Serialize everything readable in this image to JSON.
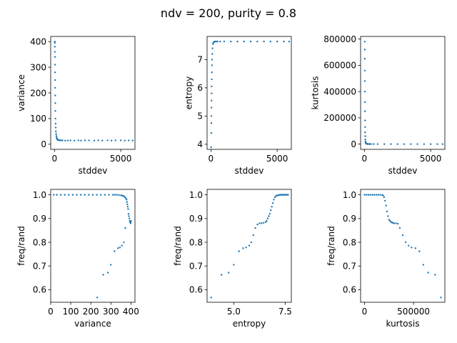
{
  "figure": {
    "title": "ndv = 200, purity = 0.8",
    "marker_color": "#1f77b4"
  },
  "chart_data": [
    {
      "type": "scatter",
      "xlabel": "stddev",
      "ylabel": "variance",
      "xlim": [
        -290,
        6070
      ],
      "ylim": [
        -20,
        420
      ],
      "xticks": [
        0,
        5000
      ],
      "yticks": [
        0,
        100,
        200,
        300,
        400
      ],
      "series": [
        {
          "x": [
            20,
            22,
            25,
            28,
            30,
            33,
            36,
            40,
            45,
            50,
            55,
            60,
            70,
            80,
            90,
            100,
            120,
            140,
            160,
            180,
            200,
            230,
            260,
            300,
            350,
            400,
            500,
            600,
            800,
            1000,
            1200,
            1500,
            1800,
            2000,
            2300,
            2600,
            3000,
            3300,
            3600,
            4000,
            4300,
            4600,
            5000,
            5300,
            5600,
            5900
          ],
          "y": [
            400,
            395,
            380,
            360,
            340,
            310,
            280,
            250,
            220,
            190,
            160,
            130,
            100,
            80,
            65,
            50,
            40,
            32,
            26,
            22,
            19,
            18,
            17,
            16,
            16,
            15,
            15,
            15,
            14,
            14,
            15,
            14,
            15,
            14,
            15,
            15,
            14,
            15,
            14,
            15,
            14,
            15,
            15,
            14,
            15,
            14
          ]
        }
      ]
    },
    {
      "type": "scatter",
      "xlabel": "stddev",
      "ylabel": "entropy",
      "xlim": [
        -290,
        6070
      ],
      "ylim": [
        3.82,
        7.82
      ],
      "xticks": [
        0,
        5000
      ],
      "yticks": [
        4,
        5,
        6,
        7
      ],
      "series": [
        {
          "x": [
            20,
            25,
            30,
            35,
            40,
            45,
            50,
            55,
            60,
            70,
            80,
            90,
            100,
            120,
            150,
            180,
            220,
            260,
            300,
            400,
            500,
            700,
            1000,
            1500,
            2000,
            2500,
            3000,
            3500,
            4000,
            4500,
            5000,
            5500,
            5900
          ],
          "y": [
            3.9,
            4.4,
            4.75,
            5.0,
            5.3,
            5.55,
            5.8,
            6.05,
            6.3,
            6.55,
            6.8,
            7.0,
            7.2,
            7.4,
            7.55,
            7.6,
            7.62,
            7.63,
            7.64,
            7.64,
            7.64,
            7.64,
            7.64,
            7.64,
            7.64,
            7.64,
            7.64,
            7.64,
            7.64,
            7.64,
            7.64,
            7.64,
            7.64
          ]
        }
      ]
    },
    {
      "type": "scatter",
      "xlabel": "stddev",
      "ylabel": "kurtosis",
      "xlim": [
        -290,
        6070
      ],
      "ylim": [
        -40000,
        820000
      ],
      "xticks": [
        0,
        5000
      ],
      "yticks": [
        0,
        200000,
        400000,
        600000,
        800000
      ],
      "series": [
        {
          "x": [
            20,
            22,
            25,
            28,
            30,
            33,
            36,
            40,
            45,
            50,
            55,
            60,
            70,
            80,
            90,
            100,
            120,
            140,
            170,
            200,
            250,
            300,
            400,
            500,
            700,
            1000,
            1500,
            2000,
            2500,
            3000,
            3500,
            4000,
            4500,
            5000,
            5500,
            5900
          ],
          "y": [
            780000,
            720000,
            650000,
            560000,
            480000,
            400000,
            320000,
            250000,
            180000,
            130000,
            90000,
            60000,
            35000,
            20000,
            12000,
            8000,
            5000,
            3000,
            2000,
            1000,
            800,
            500,
            300,
            200,
            100,
            50,
            20,
            10,
            0,
            0,
            0,
            0,
            0,
            0,
            0,
            0
          ]
        }
      ]
    },
    {
      "type": "scatter",
      "xlabel": "variance",
      "ylabel": "freq/rand",
      "xlim": [
        0,
        420
      ],
      "ylim": [
        0.547,
        1.023
      ],
      "xticks": [
        0,
        100,
        200,
        300,
        400
      ],
      "yticks": [
        0.6,
        0.7,
        0.8,
        0.9,
        1.0
      ],
      "series": [
        {
          "x": [
            15,
            30,
            50,
            70,
            90,
            110,
            130,
            150,
            170,
            190,
            210,
            230,
            250,
            270,
            290,
            310,
            320,
            330,
            340,
            350,
            355,
            360,
            365,
            370,
            375,
            378,
            380,
            382,
            384,
            386,
            388,
            390,
            392,
            394,
            396,
            398,
            399,
            400,
            232,
            262,
            285,
            300,
            318,
            335,
            345,
            355,
            365,
            372
          ],
          "y": [
            1.0,
            1.0,
            1.0,
            1.0,
            1.0,
            1.0,
            1.0,
            1.0,
            1.0,
            1.0,
            1.0,
            1.0,
            1.0,
            1.0,
            1.0,
            1.0,
            1.0,
            1.0,
            0.999,
            0.998,
            0.997,
            0.996,
            0.994,
            0.99,
            0.985,
            0.98,
            0.97,
            0.96,
            0.95,
            0.94,
            0.92,
            0.91,
            0.9,
            0.89,
            0.885,
            0.88,
            0.885,
            0.89,
            0.567,
            0.663,
            0.672,
            0.705,
            0.762,
            0.775,
            0.778,
            0.786,
            0.8,
            0.86
          ]
        }
      ]
    },
    {
      "type": "scatter",
      "xlabel": "entropy",
      "ylabel": "freq/rand",
      "xlim": [
        3.7,
        7.8
      ],
      "ylim": [
        0.547,
        1.023
      ],
      "xticks": [
        5.0,
        7.5
      ],
      "yticks": [
        0.6,
        0.7,
        0.8,
        0.9,
        1.0
      ],
      "series": [
        {
          "x": [
            3.9,
            4.4,
            4.75,
            5.0,
            5.25,
            5.45,
            5.6,
            5.75,
            5.85,
            5.95,
            6.05,
            6.15,
            6.25,
            6.35,
            6.45,
            6.55,
            6.6,
            6.65,
            6.7,
            6.75,
            6.8,
            6.85,
            6.9,
            6.95,
            7.0,
            7.05,
            7.1,
            7.15,
            7.2,
            7.25,
            7.3,
            7.35,
            7.4,
            7.45,
            7.5,
            7.55,
            7.6,
            7.64
          ],
          "y": [
            0.567,
            0.663,
            0.672,
            0.705,
            0.762,
            0.775,
            0.778,
            0.786,
            0.8,
            0.83,
            0.86,
            0.875,
            0.88,
            0.88,
            0.882,
            0.885,
            0.89,
            0.9,
            0.91,
            0.92,
            0.935,
            0.95,
            0.965,
            0.98,
            0.99,
            0.995,
            0.997,
            0.998,
            0.999,
            1.0,
            1.0,
            1.0,
            1.0,
            1.0,
            1.0,
            1.0,
            1.0,
            1.0
          ]
        }
      ]
    },
    {
      "type": "scatter",
      "xlabel": "kurtosis",
      "ylabel": "freq/rand",
      "xlim": [
        -40000,
        820000
      ],
      "ylim": [
        0.547,
        1.023
      ],
      "xticks": [
        0,
        500000
      ],
      "yticks": [
        0.6,
        0.7,
        0.8,
        0.9,
        1.0
      ],
      "series": [
        {
          "x": [
            0,
            20000,
            40000,
            60000,
            80000,
            100000,
            120000,
            140000,
            160000,
            180000,
            190000,
            200000,
            210000,
            220000,
            230000,
            240000,
            250000,
            260000,
            270000,
            280000,
            290000,
            300000,
            320000,
            340000,
            360000,
            390000,
            420000,
            450000,
            480000,
            520000,
            560000,
            600000,
            650000,
            720000,
            780000
          ],
          "y": [
            1.0,
            1.0,
            1.0,
            1.0,
            1.0,
            1.0,
            1.0,
            1.0,
            1.0,
            0.999,
            0.997,
            0.99,
            0.975,
            0.955,
            0.93,
            0.91,
            0.895,
            0.89,
            0.886,
            0.883,
            0.882,
            0.88,
            0.88,
            0.878,
            0.86,
            0.83,
            0.8,
            0.786,
            0.778,
            0.775,
            0.762,
            0.705,
            0.672,
            0.663,
            0.567
          ]
        }
      ]
    }
  ]
}
